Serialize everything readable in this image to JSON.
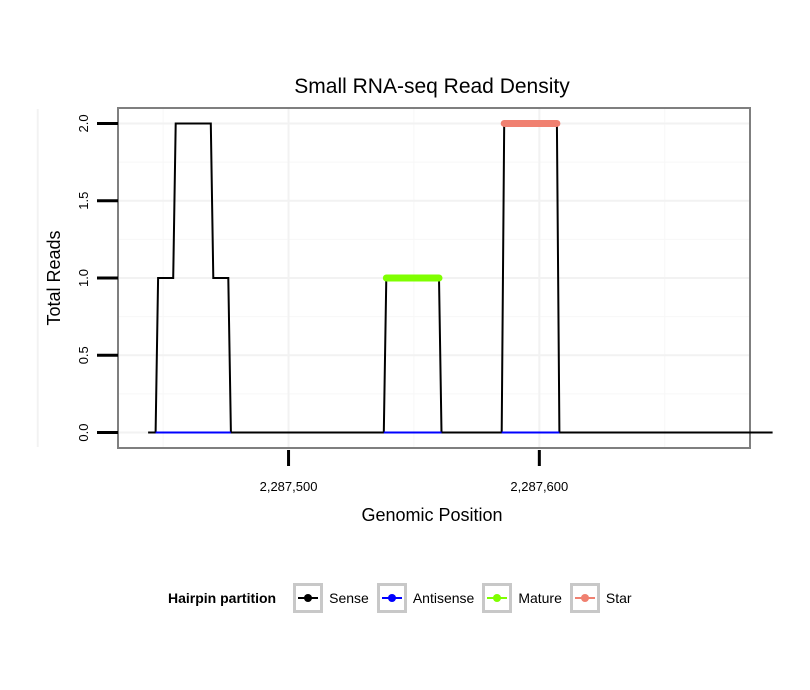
{
  "chart_data": {
    "type": "line",
    "title": "Small RNA-seq Read Density",
    "xlabel": "Genomic Position",
    "ylabel": "Total Reads",
    "xlim": [
      2287432,
      2287684
    ],
    "ylim": [
      -0.1,
      2.1
    ],
    "xticks": [
      2287500,
      2287600
    ],
    "xtick_labels": [
      "2,287,500",
      "2,287,600"
    ],
    "yticks": [
      0.0,
      0.5,
      1.0,
      1.5,
      2.0
    ],
    "ytick_labels": [
      "0.0",
      "0.5",
      "1.0",
      "1.5",
      "2.0"
    ],
    "grid": true,
    "legend_title": "Hairpin partition",
    "legend_position": "bottom",
    "series": [
      {
        "name": "Sense",
        "color": "#000000",
        "style": "line",
        "x": [
          2287444,
          2287447,
          2287448,
          2287454,
          2287455,
          2287469,
          2287470,
          2287476,
          2287477,
          2287538,
          2287539,
          2287560,
          2287561,
          2287585,
          2287586,
          2287607,
          2287608,
          2287693
        ],
        "y": [
          0,
          0,
          1,
          1,
          2,
          2,
          1,
          1,
          0,
          0,
          1,
          1,
          0,
          0,
          2,
          2,
          0,
          0
        ]
      },
      {
        "name": "Antisense",
        "color": "#0000ff",
        "style": "line",
        "x": [
          2287447,
          2287477,
          2287538,
          2287561,
          2287585,
          2287608
        ],
        "y": [
          0,
          0,
          0,
          0,
          0,
          0
        ],
        "segments": [
          [
            0,
            1
          ],
          [
            2,
            3
          ],
          [
            4,
            5
          ]
        ]
      },
      {
        "name": "Mature",
        "color": "#7fff00",
        "style": "thick",
        "x": [
          2287539,
          2287560
        ],
        "y": [
          1,
          1
        ]
      },
      {
        "name": "Star",
        "color": "#f08070",
        "style": "thick",
        "x": [
          2287586,
          2287607
        ],
        "y": [
          2,
          2
        ]
      }
    ]
  }
}
